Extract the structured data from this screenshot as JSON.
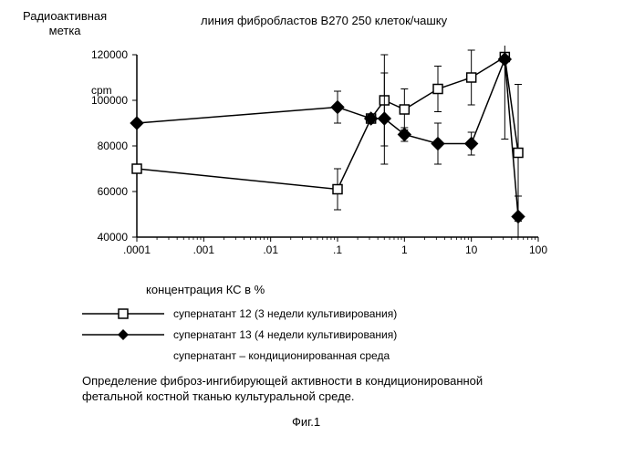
{
  "header_left_l1": "Радиоактивная",
  "header_left_l2": "метка",
  "header_right": "линия фибробластов B270 250 клеток/чашку",
  "yunit": "cpm",
  "xlabel": "концентрация  КС в %",
  "legend": {
    "s12": "супернатант 12 (3 недели культивирования)",
    "s13": "супернатант 13 (4 недели культивирования)",
    "note": "супернатант – кондиционированная среда"
  },
  "caption_l1": "Определение фиброз-ингибирующей активности в кондиционированной",
  "caption_l2": "фетальной костной тканью культуральной среде.",
  "fig_label": "Фиг.1",
  "chart": {
    "type": "line-log-x",
    "plot_bg": "#ffffff",
    "axis_color": "#000000",
    "text_color": "#000000",
    "error_bar_color": "#000000",
    "ylim": [
      40000,
      120000
    ],
    "yticks": [
      40000,
      60000,
      80000,
      100000,
      120000
    ],
    "xlog_min_exp": -4,
    "xlog_max_exp": 2,
    "xticks": [
      ".0001",
      ".001",
      ".01",
      ".1",
      "1",
      "10",
      "100"
    ],
    "tick_fontsize": 12,
    "line_width": 1.5,
    "marker_size": 10,
    "series": [
      {
        "name": "s12",
        "marker": "open-square",
        "fill": "#ffffff",
        "stroke": "#000000",
        "points": [
          {
            "logx": -4,
            "y": 70000,
            "err": 0
          },
          {
            "logx": -1,
            "y": 61000,
            "err": 9000
          },
          {
            "logx": -0.5,
            "y": 92000,
            "err": 0
          },
          {
            "logx": -0.3,
            "y": 100000,
            "err": 20000
          },
          {
            "logx": 0,
            "y": 96000,
            "err": 9000
          },
          {
            "logx": 0.5,
            "y": 105000,
            "err": 10000
          },
          {
            "logx": 1,
            "y": 110000,
            "err": 12000
          },
          {
            "logx": 1.5,
            "y": 119000,
            "err": 36000
          },
          {
            "logx": 1.7,
            "y": 77000,
            "err": 30000
          }
        ]
      },
      {
        "name": "s13",
        "marker": "solid-diamond",
        "fill": "#000000",
        "stroke": "#000000",
        "points": [
          {
            "logx": -4,
            "y": 90000,
            "err": 0
          },
          {
            "logx": -1,
            "y": 97000,
            "err": 7000
          },
          {
            "logx": -0.5,
            "y": 92000,
            "err": 0
          },
          {
            "logx": -0.3,
            "y": 92000,
            "err": 20000
          },
          {
            "logx": 0,
            "y": 85000,
            "err": 3000
          },
          {
            "logx": 0.5,
            "y": 81000,
            "err": 9000
          },
          {
            "logx": 1,
            "y": 81000,
            "err": 5000
          },
          {
            "logx": 1.5,
            "y": 118000,
            "err": 0
          },
          {
            "logx": 1.7,
            "y": 49000,
            "err": 9000
          }
        ]
      }
    ]
  }
}
